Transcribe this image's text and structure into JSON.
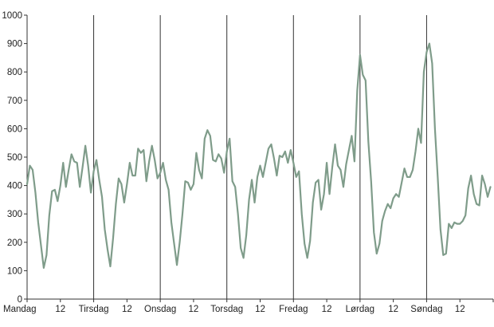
{
  "chart_data": {
    "type": "line",
    "title": "",
    "xlabel": "",
    "ylabel": "",
    "xlim": [
      0,
      168
    ],
    "ylim": [
      0,
      1000
    ],
    "y_ticks": [
      0,
      100,
      200,
      300,
      400,
      500,
      600,
      700,
      800,
      900,
      1000
    ],
    "x_tick_labels": [
      {
        "at": 0,
        "label": "Mandag"
      },
      {
        "at": 12,
        "label": "12"
      },
      {
        "at": 24,
        "label": "Tirsdag"
      },
      {
        "at": 36,
        "label": "12"
      },
      {
        "at": 48,
        "label": "Onsdag"
      },
      {
        "at": 60,
        "label": "12"
      },
      {
        "at": 72,
        "label": "Torsdag"
      },
      {
        "at": 84,
        "label": "12"
      },
      {
        "at": 96,
        "label": "Fredag"
      },
      {
        "at": 108,
        "label": "12"
      },
      {
        "at": 120,
        "label": "Lørdag"
      },
      {
        "at": 132,
        "label": "12"
      },
      {
        "at": 144,
        "label": "Søndag"
      },
      {
        "at": 156,
        "label": "12"
      }
    ],
    "day_separators": [
      24,
      48,
      72,
      96,
      120,
      144
    ],
    "grid": false,
    "line_color": "#7f9c8a",
    "series": [
      {
        "x": [
          0,
          1,
          2,
          3,
          4,
          5,
          6,
          7,
          8,
          9,
          10,
          11,
          12,
          13,
          14,
          15,
          16,
          17,
          18,
          19,
          20,
          21,
          22,
          23,
          24,
          25,
          26,
          27,
          28,
          29,
          30,
          31,
          32,
          33,
          34,
          35,
          36,
          37,
          38,
          39,
          40,
          41,
          42,
          43,
          44,
          45,
          46,
          47,
          48,
          49,
          50,
          51,
          52,
          53,
          54,
          55,
          56,
          57,
          58,
          59,
          60,
          61,
          62,
          63,
          64,
          65,
          66,
          67,
          68,
          69,
          70,
          71,
          72,
          73,
          74,
          75,
          76,
          77,
          78,
          79,
          80,
          81,
          82,
          83,
          84,
          85,
          86,
          87,
          88,
          89,
          90,
          91,
          92,
          93,
          94,
          95,
          96,
          97,
          98,
          99,
          100,
          101,
          102,
          103,
          104,
          105,
          106,
          107,
          108,
          109,
          110,
          111,
          112,
          113,
          114,
          115,
          116,
          117,
          118,
          119,
          120,
          121,
          122,
          123,
          124,
          125,
          126,
          127,
          128,
          129,
          130,
          131,
          132,
          133,
          134,
          135,
          136,
          137,
          138,
          139,
          140,
          141,
          142,
          143,
          144,
          145,
          146,
          147,
          148,
          149,
          150,
          151,
          152,
          153,
          154,
          155,
          156,
          157,
          158,
          159,
          160,
          161,
          162,
          163,
          164,
          165,
          166,
          167
        ],
        "values": [
          405,
          470,
          455,
          375,
          270,
          190,
          110,
          155,
          295,
          380,
          385,
          345,
          400,
          480,
          395,
          455,
          510,
          485,
          480,
          395,
          465,
          540,
          470,
          375,
          450,
          490,
          420,
          360,
          245,
          175,
          115,
          215,
          335,
          425,
          405,
          340,
          405,
          480,
          435,
          435,
          530,
          515,
          525,
          415,
          485,
          540,
          490,
          425,
          445,
          480,
          420,
          385,
          270,
          195,
          120,
          200,
          300,
          415,
          410,
          385,
          405,
          515,
          455,
          425,
          565,
          595,
          575,
          490,
          485,
          510,
          495,
          445,
          520,
          565,
          415,
          395,
          300,
          180,
          145,
          225,
          350,
          420,
          340,
          430,
          470,
          430,
          480,
          530,
          545,
          495,
          435,
          505,
          500,
          520,
          480,
          525,
          480,
          430,
          450,
          300,
          195,
          145,
          205,
          340,
          410,
          420,
          315,
          370,
          480,
          370,
          465,
          545,
          470,
          455,
          395,
          475,
          525,
          575,
          485,
          735,
          860,
          790,
          770,
          555,
          415,
          235,
          160,
          195,
          275,
          310,
          335,
          320,
          355,
          370,
          360,
          410,
          460,
          430,
          430,
          455,
          520,
          600,
          550,
          800,
          870,
          900,
          830,
          600,
          430,
          245,
          155,
          160,
          265,
          250,
          270,
          265,
          265,
          275,
          295,
          390,
          435,
          370,
          335,
          330,
          435,
          405,
          360,
          395
        ]
      }
    ]
  }
}
